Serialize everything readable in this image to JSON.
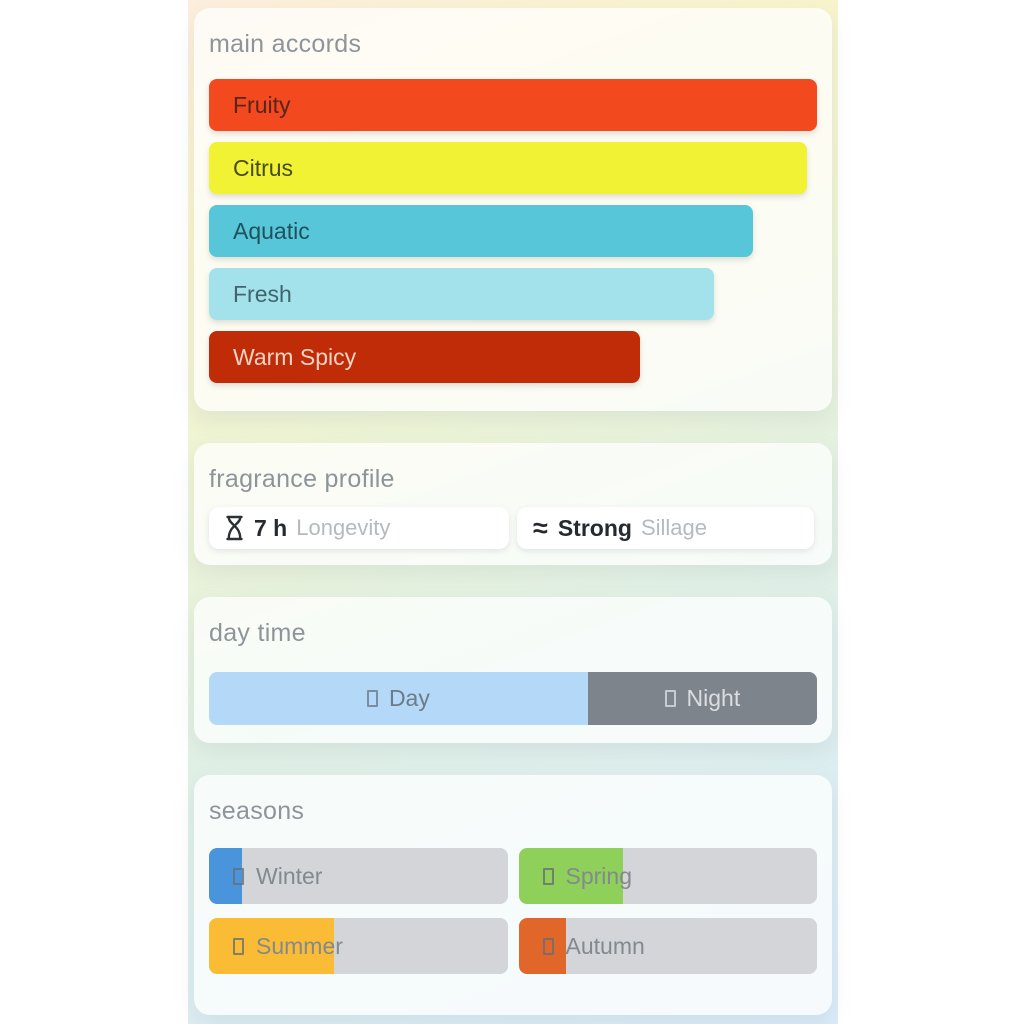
{
  "accords": {
    "title": "main accords",
    "bars": [
      {
        "label": "Fruity",
        "width_pct": 100,
        "color": "#f2491f",
        "text_color": "#59241b"
      },
      {
        "label": "Citrus",
        "width_pct": 98.3,
        "color": "#f0f233",
        "text_color": "#474c1c"
      },
      {
        "label": "Aquatic",
        "width_pct": 89.4,
        "color": "#57c6d8",
        "text_color": "#1f515c"
      },
      {
        "label": "Fresh",
        "width_pct": 83.1,
        "color": "#a3e2ea",
        "text_color": "#40656e"
      },
      {
        "label": "Warm Spicy",
        "width_pct": 70.9,
        "color": "#c02b08",
        "text_color": "#f3d3c4"
      }
    ]
  },
  "profile": {
    "title": "fragrance profile",
    "longevity": {
      "icon": "hourglass-icon",
      "value": "7 h",
      "label": "Longevity"
    },
    "sillage": {
      "icon": "waves-approx-symbol",
      "symbol": "≈",
      "value": "Strong",
      "label": "Sillage"
    }
  },
  "daytime": {
    "title": "day time",
    "day": {
      "label": "Day",
      "width_pct": 62.3,
      "color": "#b4d9f8",
      "icon": "tofu-box-icon"
    },
    "night": {
      "label": "Night",
      "width_pct": 37.7,
      "color": "#7e848b",
      "icon": "tofu-box-icon"
    }
  },
  "seasons": {
    "title": "seasons",
    "track_color": "#d3d5d9",
    "items": [
      {
        "label": "Winter",
        "fill_pct": 11,
        "color": "#4a94dc",
        "icon": "tofu-box-icon"
      },
      {
        "label": "Spring",
        "fill_pct": 35,
        "color": "#8ed05a",
        "icon": "tofu-box-icon"
      },
      {
        "label": "Summer",
        "fill_pct": 42,
        "color": "#fbbc35",
        "icon": "tofu-box-icon"
      },
      {
        "label": "Autumn",
        "fill_pct": 16,
        "color": "#e0662a",
        "icon": "tofu-box-icon"
      }
    ]
  }
}
